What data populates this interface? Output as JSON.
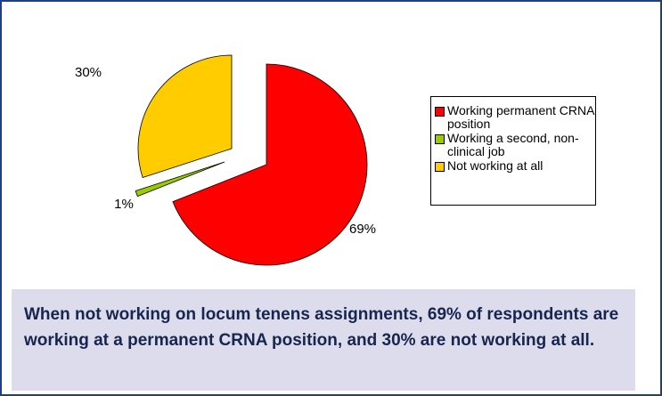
{
  "chart_data": {
    "type": "pie",
    "categories": [
      "Working permanent CRNA position",
      "Working a second, non-clinical job",
      "Not working at all"
    ],
    "values": [
      69,
      1,
      30
    ],
    "value_labels": [
      "69%",
      "1%",
      "30%"
    ],
    "colors": [
      "#ff0000",
      "#99cc00",
      "#ffcc00"
    ],
    "caption": "When not working on locum tenens assignments, 69% of respondents are working at a permanent CRNA position, and 30% are not working at all."
  }
}
